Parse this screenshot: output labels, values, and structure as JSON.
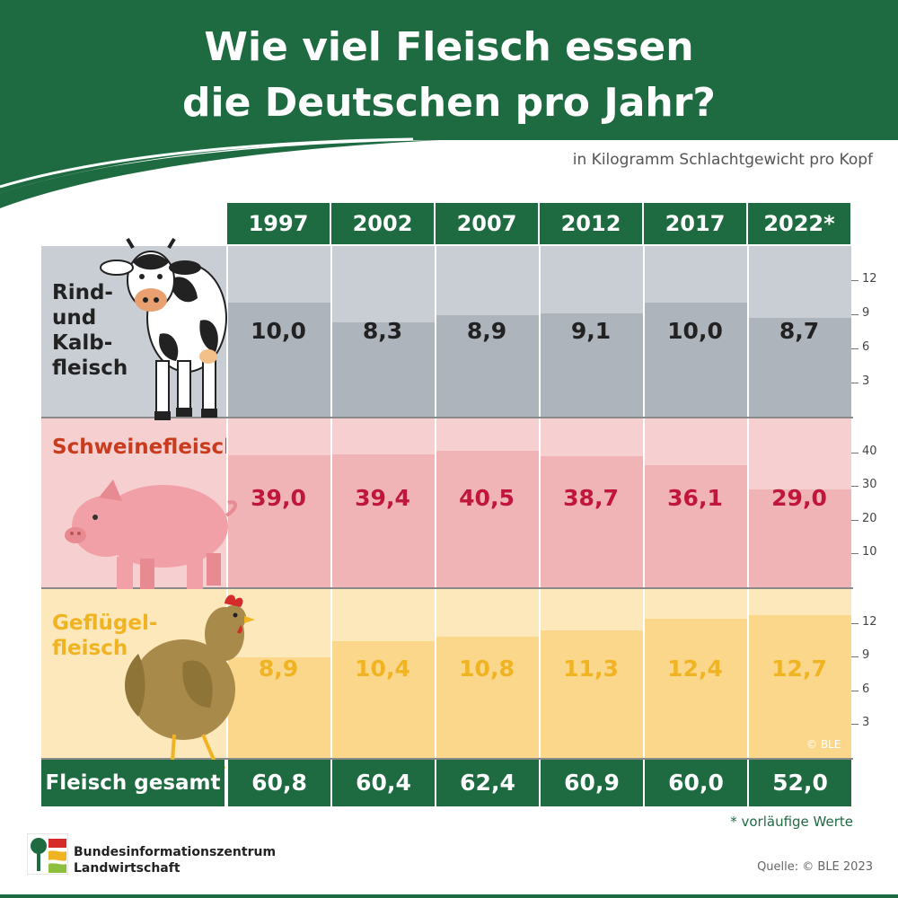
{
  "title_line1": "Wie viel Fleisch essen",
  "title_line2": "die Deutschen pro Jahr?",
  "subtitle": "in Kilogramm Schlachtgewicht pro Kopf",
  "years": [
    "1997",
    "2002",
    "2007",
    "2012",
    "2017",
    "2022*"
  ],
  "colors": {
    "header_green": "#1e6b42",
    "beef_bar": "#aeb4bb",
    "beef_bg": "#c8ced3",
    "beef_text": "#222222",
    "pork_bar": "#f0b4b6",
    "pork_bg": "#f6cfd0",
    "pork_text": "#c1163c",
    "poultry_bar": "#fbd78c",
    "poultry_bg": "#fde8bc",
    "poultry_text": "#f0b322"
  },
  "chart_data": [
    {
      "type": "bar",
      "title": "Rind- und Kalbfleisch",
      "label_lines": [
        "Rind-",
        "und",
        "Kalb-",
        "fleisch"
      ],
      "categories": [
        "1997",
        "2002",
        "2007",
        "2012",
        "2017",
        "2022*"
      ],
      "values": [
        10.0,
        8.3,
        8.9,
        9.1,
        10.0,
        8.7
      ],
      "value_labels": [
        "10,0",
        "8,3",
        "8,9",
        "9,1",
        "10,0",
        "8,7"
      ],
      "yticks": [
        3,
        6,
        9,
        12
      ],
      "ylim": [
        0,
        15
      ]
    },
    {
      "type": "bar",
      "title": "Schweinefleisch",
      "label_lines": [
        "Schweinefleisch"
      ],
      "categories": [
        "1997",
        "2002",
        "2007",
        "2012",
        "2017",
        "2022*"
      ],
      "values": [
        39.0,
        39.4,
        40.5,
        38.7,
        36.1,
        29.0
      ],
      "value_labels": [
        "39,0",
        "39,4",
        "40,5",
        "38,7",
        "36,1",
        "29,0"
      ],
      "yticks": [
        10,
        20,
        30,
        40
      ],
      "ylim": [
        0,
        50
      ]
    },
    {
      "type": "bar",
      "title": "Geflügelfleisch",
      "label_lines": [
        "Geflügel-",
        "fleisch"
      ],
      "categories": [
        "1997",
        "2002",
        "2007",
        "2012",
        "2017",
        "2022*"
      ],
      "values": [
        8.9,
        10.4,
        10.8,
        11.3,
        12.4,
        12.7
      ],
      "value_labels": [
        "8,9",
        "10,4",
        "10,8",
        "11,3",
        "12,4",
        "12,7"
      ],
      "yticks": [
        3,
        6,
        9,
        12
      ],
      "ylim": [
        0,
        15
      ]
    }
  ],
  "total": {
    "label": "Fleisch gesamt",
    "values": [
      "60,8",
      "60,4",
      "62,4",
      "60,9",
      "60,0",
      "52,0"
    ]
  },
  "footnote": "* vorläufige Werte",
  "copyright": "© BLE",
  "source": "Quelle: © BLE 2023",
  "org": {
    "name_line1": "Bundesinformationszentrum",
    "name_line2": "Landwirtschaft"
  }
}
